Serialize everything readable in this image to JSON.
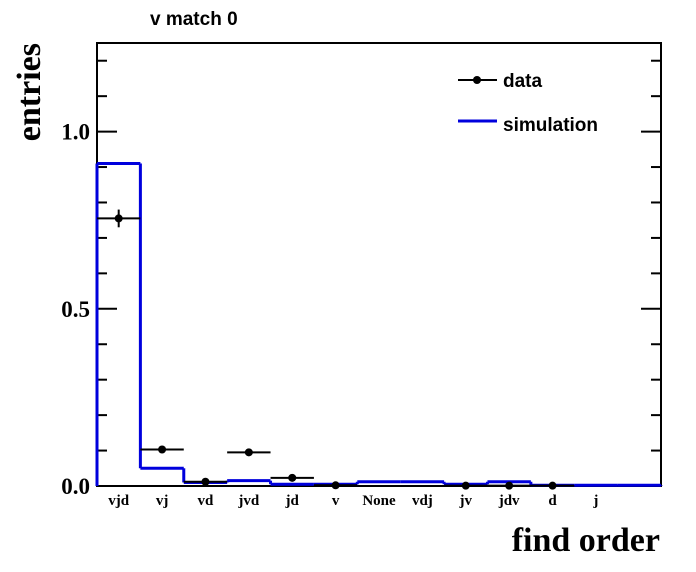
{
  "chart_data": {
    "type": "bar",
    "title": "v match 0",
    "xlabel": "find order",
    "ylabel": "entries",
    "ylim": [
      0,
      1.25
    ],
    "y_ticks": [
      "0.0",
      "0.5",
      "1.0"
    ],
    "categories": [
      "vjd",
      "vj",
      "vd",
      "jvd",
      "jd",
      "v",
      "None",
      "vdj",
      "jv",
      "jdv",
      "d",
      "j",
      ""
    ],
    "series": [
      {
        "name": "data",
        "style": "points-with-errors",
        "color": "#000000",
        "values": [
          0.755,
          0.103,
          0.012,
          0.095,
          0.023,
          0.002,
          null,
          null,
          0.001,
          0.001,
          0.001,
          null,
          null
        ],
        "errors": [
          0.025,
          0.005,
          0.004,
          0.005,
          0.004,
          0.001,
          null,
          null,
          0.001,
          0.001,
          0.001,
          null,
          null
        ]
      },
      {
        "name": "simulation",
        "style": "step",
        "color": "#0000dd",
        "values": [
          0.91,
          0.05,
          0.01,
          0.015,
          0.005,
          0.005,
          0.012,
          0.012,
          0.005,
          0.012,
          0.002,
          0.002,
          0.002
        ]
      }
    ],
    "legend": {
      "position": "top-right",
      "entries": [
        "data",
        "simulation"
      ]
    },
    "grid": false
  }
}
